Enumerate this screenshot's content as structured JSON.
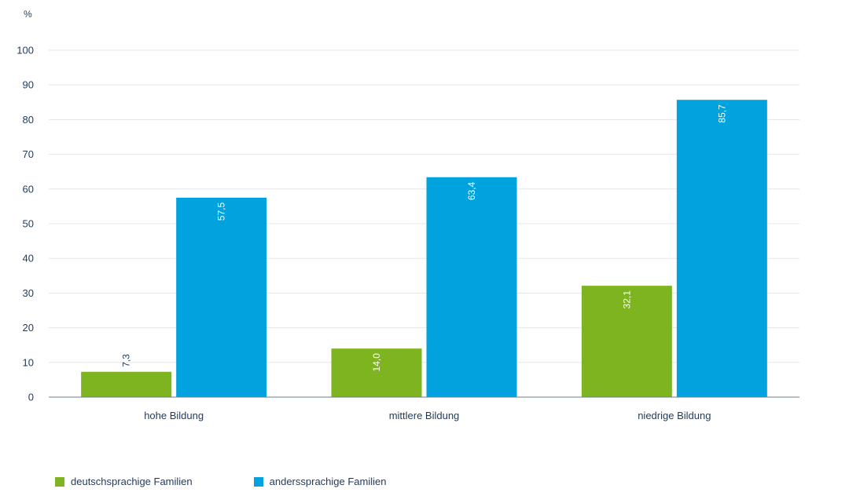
{
  "chart_data": {
    "type": "bar",
    "unit_label": "%",
    "categories": [
      "hohe Bildung",
      "mittlere Bildung",
      "niedrige Bildung"
    ],
    "series": [
      {
        "name": "deutschsprachige Familien",
        "color": "#7db41f",
        "values": [
          7.3,
          14.0,
          32.1
        ],
        "labels": [
          "7,3",
          "14,0",
          "32,1"
        ]
      },
      {
        "name": "anderssprachige Familien",
        "color": "#00a3dd",
        "values": [
          57.5,
          63.4,
          85.7
        ],
        "labels": [
          "57,5",
          "63,4",
          "85,7"
        ]
      }
    ],
    "yticks": [
      "0",
      "10",
      "20",
      "30",
      "40",
      "50",
      "60",
      "70",
      "80",
      "90",
      "100"
    ],
    "ylim": [
      0,
      100
    ],
    "grid": true,
    "legend_position": "bottom-left"
  }
}
